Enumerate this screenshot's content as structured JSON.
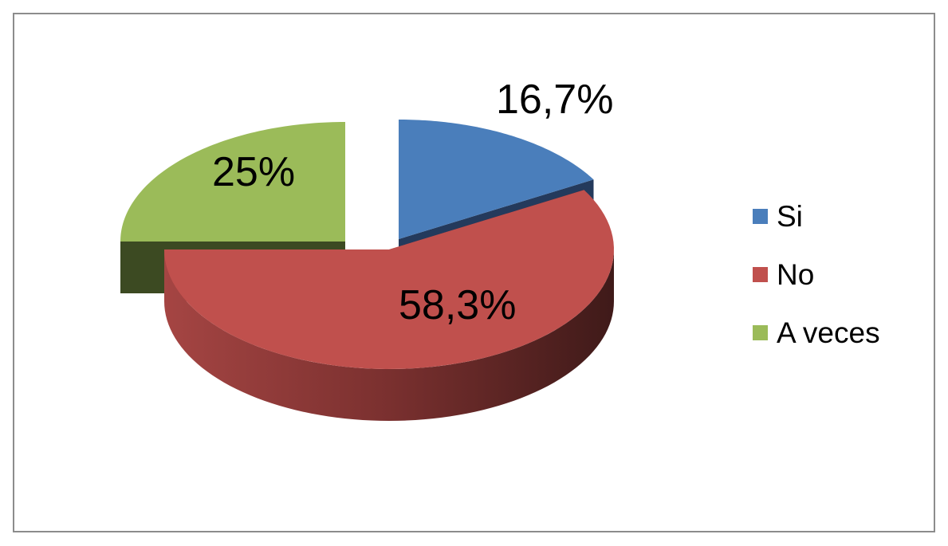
{
  "chart_data": {
    "type": "pie",
    "style": "3d-exploded",
    "categories": [
      "Si",
      "No",
      "A veces"
    ],
    "values": [
      16.7,
      58.3,
      25
    ],
    "data_labels": [
      "16,7%",
      "58,3%",
      "25%"
    ],
    "colors": [
      "#4a7ebb",
      "#c0504d",
      "#9bbb59"
    ],
    "legend": {
      "placement": "right",
      "entries": [
        "Si",
        "No",
        "A veces"
      ]
    }
  }
}
